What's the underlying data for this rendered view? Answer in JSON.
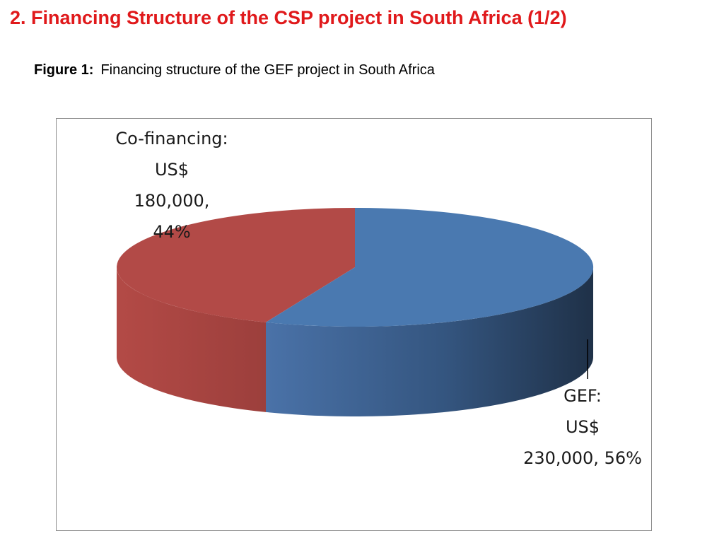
{
  "slide": {
    "title": "2. Financing Structure of the CSP project in South Africa (1/2)",
    "title_color": "#e0191b"
  },
  "caption": {
    "label": "Figure 1:",
    "text": "Financing structure of the GEF project in South Africa"
  },
  "chart_data": {
    "type": "pie",
    "style": "3d",
    "slices": [
      {
        "name": "GEF",
        "value": 230000,
        "percent": 56,
        "color": "#4a79b0",
        "label_lines": [
          "GEF:",
          "US$",
          "230,000, 56%"
        ]
      },
      {
        "name": "Co-financing",
        "value": 180000,
        "percent": 44,
        "color": "#b24a47",
        "label_lines": [
          "Co-financing:",
          "US$",
          "180,000,",
          "44%"
        ]
      }
    ]
  }
}
